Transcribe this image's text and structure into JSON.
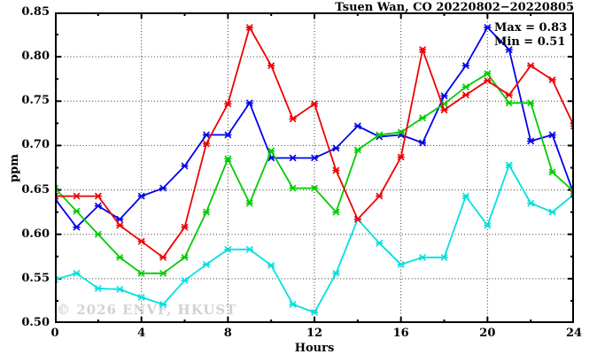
{
  "header": {
    "title": "Tsuen Wan, CO 20220802−20220805"
  },
  "annotation": {
    "max_label": "Max = 0.83",
    "min_label": "Min = 0.51"
  },
  "watermark_text": "© 2026 ENVF, HKUST",
  "chart_data": {
    "type": "line",
    "title": "Tsuen Wan, CO 20220802-20220805",
    "xlabel": "Hours",
    "ylabel": "ppm",
    "xlim": [
      0,
      24
    ],
    "ylim": [
      0.5,
      0.85
    ],
    "grid": true,
    "legend_position": "none",
    "annotations": {
      "max": 0.83,
      "min": 0.51
    },
    "yticks": [
      {
        "label": "0.50",
        "value": 0.5
      },
      {
        "label": "0.55",
        "value": 0.55
      },
      {
        "label": "0.60",
        "value": 0.6
      },
      {
        "label": "0.65",
        "value": 0.65
      },
      {
        "label": "0.70",
        "value": 0.7
      },
      {
        "label": "0.75",
        "value": 0.75
      },
      {
        "label": "0.80",
        "value": 0.8
      },
      {
        "label": "0.85",
        "value": 0.85
      }
    ],
    "yticks_minor": [
      0.525,
      0.575,
      0.625,
      0.675,
      0.725,
      0.775,
      0.825
    ],
    "xticks": [
      {
        "label": "0",
        "value": 0
      },
      {
        "label": "4",
        "value": 4
      },
      {
        "label": "8",
        "value": 8
      },
      {
        "label": "12",
        "value": 12
      },
      {
        "label": "16",
        "value": 16
      },
      {
        "label": "20",
        "value": 20
      },
      {
        "label": "24",
        "value": 24
      }
    ],
    "xticks_minor": [
      2,
      6,
      10,
      14,
      18,
      22
    ],
    "grid_x": [
      4,
      8,
      12,
      16,
      20
    ],
    "grid_y": [
      0.55,
      0.6,
      0.65,
      0.7,
      0.75,
      0.8
    ],
    "x": [
      0,
      1,
      2,
      3,
      4,
      5,
      6,
      7,
      8,
      9,
      10,
      11,
      12,
      13,
      14,
      15,
      16,
      17,
      18,
      19,
      20,
      21,
      22,
      23,
      24
    ],
    "series": [
      {
        "name": "cyan-line",
        "color": "#00e0e0",
        "values": [
          0.549,
          0.556,
          0.539,
          0.538,
          0.529,
          0.521,
          0.548,
          0.566,
          0.583,
          0.583,
          0.565,
          0.521,
          0.512,
          0.556,
          0.617,
          0.59,
          0.566,
          0.574,
          0.574,
          0.643,
          0.61,
          0.678,
          0.635,
          0.625,
          0.645
        ]
      },
      {
        "name": "blue-line",
        "color": "#0000ee",
        "values": [
          0.64,
          0.608,
          0.632,
          0.617,
          0.643,
          0.652,
          0.677,
          0.712,
          0.712,
          0.748,
          0.686,
          0.686,
          0.686,
          0.697,
          0.722,
          0.71,
          0.712,
          0.703,
          0.756,
          0.79,
          0.833,
          0.808,
          0.705,
          0.712,
          0.645
        ]
      },
      {
        "name": "green-line",
        "color": "#00cc00",
        "values": [
          0.652,
          0.626,
          0.6,
          0.574,
          0.556,
          0.556,
          0.574,
          0.625,
          0.685,
          0.635,
          0.694,
          0.652,
          0.652,
          0.625,
          0.695,
          0.712,
          0.715,
          0.731,
          0.747,
          0.766,
          0.781,
          0.748,
          0.748,
          0.67,
          0.648
        ]
      },
      {
        "name": "red-line",
        "color": "#ee0000",
        "values": [
          0.643,
          0.643,
          0.643,
          0.61,
          0.592,
          0.574,
          0.608,
          0.702,
          0.747,
          0.833,
          0.79,
          0.73,
          0.747,
          0.672,
          0.617,
          0.643,
          0.687,
          0.808,
          0.74,
          0.757,
          0.773,
          0.757,
          0.79,
          0.774,
          0.722
        ]
      }
    ]
  }
}
